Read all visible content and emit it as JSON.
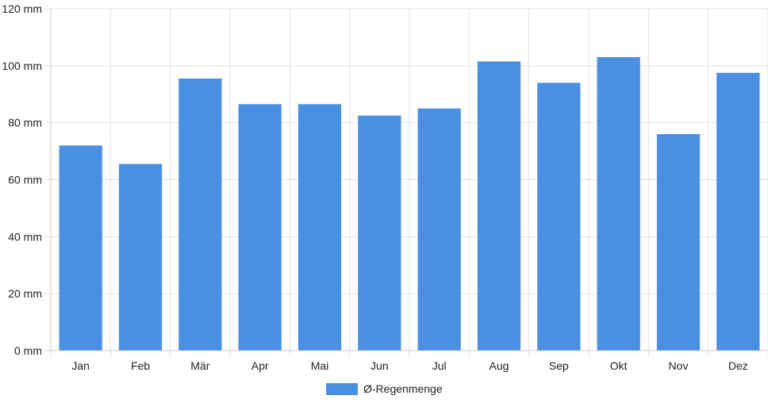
{
  "chart_data": {
    "type": "bar",
    "categories": [
      "Jan",
      "Feb",
      "Mär",
      "Apr",
      "Mai",
      "Jun",
      "Jul",
      "Aug",
      "Sep",
      "Okt",
      "Nov",
      "Dez"
    ],
    "series": [
      {
        "name": "Ø-Regenmenge",
        "values": [
          72,
          65.5,
          95.5,
          86.5,
          86.5,
          82.5,
          85,
          101.5,
          94,
          103,
          76,
          97.5
        ],
        "color": "#4a90e2"
      }
    ],
    "yticks": [
      "0 mm",
      "20 mm",
      "40 mm",
      "60 mm",
      "80 mm",
      "100 mm",
      "120 mm"
    ],
    "ylim": [
      0,
      120
    ],
    "grid": true,
    "legend_position": "bottom-center"
  }
}
